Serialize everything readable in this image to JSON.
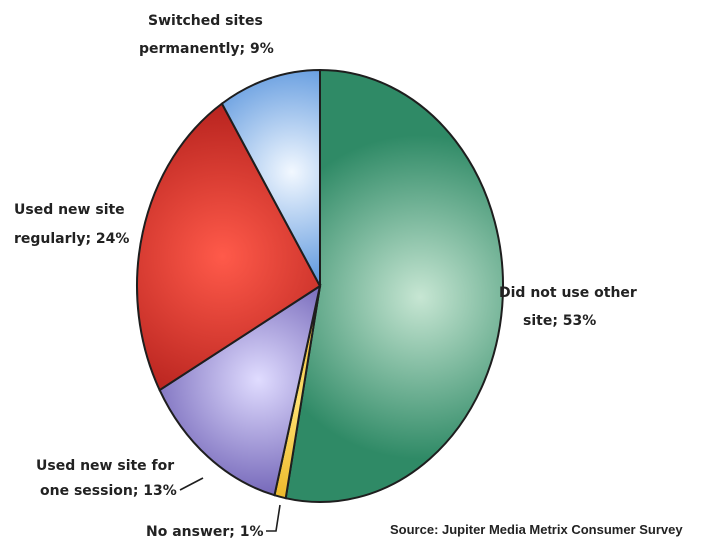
{
  "chart_data": {
    "type": "pie",
    "slices": [
      {
        "line1": "Did not use other",
        "line2": "site; 53%",
        "value": 53,
        "color": "#2f8a66",
        "highlight": "#c7e6d3"
      },
      {
        "line1": "No answer; 1%",
        "line2": "",
        "value": 1,
        "color": "#e0a000",
        "highlight": "#ffe070"
      },
      {
        "line1": "Used new site for",
        "line2": "one session; 13%",
        "value": 13,
        "color": "#4b3a9e",
        "highlight": "#e0dcff"
      },
      {
        "line1": "Used new site",
        "line2": "regularly; 24%",
        "value": 24,
        "color": "#b3201c",
        "highlight": "#ff5a4a"
      },
      {
        "line1": "Switched sites",
        "line2": "permanently; 9%",
        "value": 9,
        "color": "#1f6fd0",
        "highlight": "#f2f8ff"
      }
    ],
    "source": "Source: Jupiter Media Metrix Consumer Survey"
  }
}
